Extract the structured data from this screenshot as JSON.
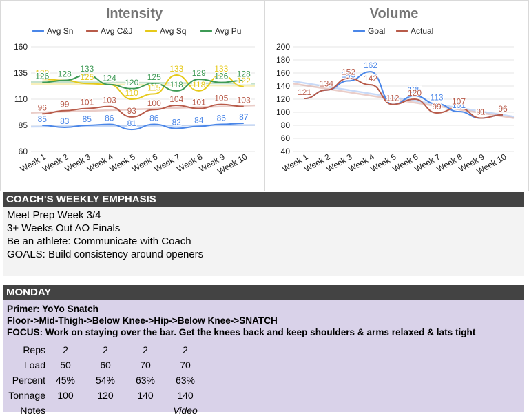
{
  "intensity_chart": {
    "title": "Intensity",
    "legend": [
      "Avg Sn",
      "Avg C&J",
      "Avg Sq",
      "Avg Pu"
    ],
    "chart_data": {
      "type": "line",
      "title": "Intensity",
      "categories": [
        "Week 1",
        "Week 2",
        "Week 3",
        "Week 4",
        "Week 5",
        "Week 6",
        "Week 7",
        "Week 8",
        "Week 9",
        "Week 10"
      ],
      "y_ticks": [
        "60",
        "85",
        "110",
        "135",
        "160"
      ],
      "ylim": [
        60,
        160
      ],
      "series": [
        {
          "name": "Avg Sn",
          "color": "#4a86e8",
          "values": [
            85,
            83,
            85,
            86,
            81,
            86,
            82,
            84,
            86,
            87
          ]
        },
        {
          "name": "Avg C&J",
          "color": "#b85b4a",
          "values": [
            96,
            99,
            101,
            103,
            93,
            100,
            104,
            101,
            105,
            103
          ]
        },
        {
          "name": "Avg Sq",
          "color": "#e6c919",
          "values": [
            129,
            128,
            125,
            124,
            110,
            115,
            133,
            118,
            133,
            122
          ]
        },
        {
          "name": "Avg Pu",
          "color": "#3e9a55",
          "values": [
            126,
            128,
            133,
            124,
            120,
            125,
            118,
            129,
            126,
            128
          ]
        }
      ]
    }
  },
  "volume_chart": {
    "title": "Volume",
    "legend": [
      "Goal",
      "Actual"
    ],
    "chart_data": {
      "type": "line",
      "title": "Volume",
      "categories": [
        "Week 1",
        "Week 2",
        "Week 3",
        "Week 4",
        "Week 5",
        "Week 6",
        "Week 7",
        "Week 8",
        "Week 9",
        "Week 10"
      ],
      "y_ticks": [
        "40",
        "60",
        "80",
        "100",
        "120",
        "140",
        "160",
        "180",
        "200"
      ],
      "ylim": [
        40,
        200
      ],
      "series": [
        {
          "name": "Goal",
          "color": "#4a86e8",
          "values": [
            121,
            134,
            148,
            162,
            112,
            125,
            113,
            101,
            91,
            96
          ]
        },
        {
          "name": "Actual",
          "color": "#b85b4a",
          "values": [
            121,
            134,
            152,
            142,
            112,
            120,
            99,
            107,
            91,
            96
          ]
        }
      ]
    }
  },
  "emphasis": {
    "header": "COACH'S WEEKLY EMPHASIS",
    "lines": [
      "Meet Prep Week 3/4",
      "3+ Weeks Out AO Finals",
      "Be an athlete: Communicate with Coach",
      "GOALS: Build consistency around openers"
    ]
  },
  "monday": {
    "header": "MONDAY",
    "primer": "Primer: YoYo Snatch",
    "sequence": "Floor->Mid-Thigh->Below Knee->Hip->Below Knee->SNATCH",
    "focus": "FOCUS: Work on staying over the bar.  Get the knees back and keep shoulders & arms relaxed & lats tight",
    "table": {
      "row_labels": [
        "Reps",
        "Load",
        "Percent",
        "Tonnage",
        "Notes"
      ],
      "reps": [
        "2",
        "2",
        "2",
        "2"
      ],
      "load": [
        "50",
        "60",
        "70",
        "70"
      ],
      "percent": [
        "45%",
        "54%",
        "63%",
        "63%"
      ],
      "tonnage": [
        "100",
        "120",
        "140",
        "140"
      ],
      "notes": [
        "",
        "",
        "",
        "Video"
      ]
    }
  }
}
